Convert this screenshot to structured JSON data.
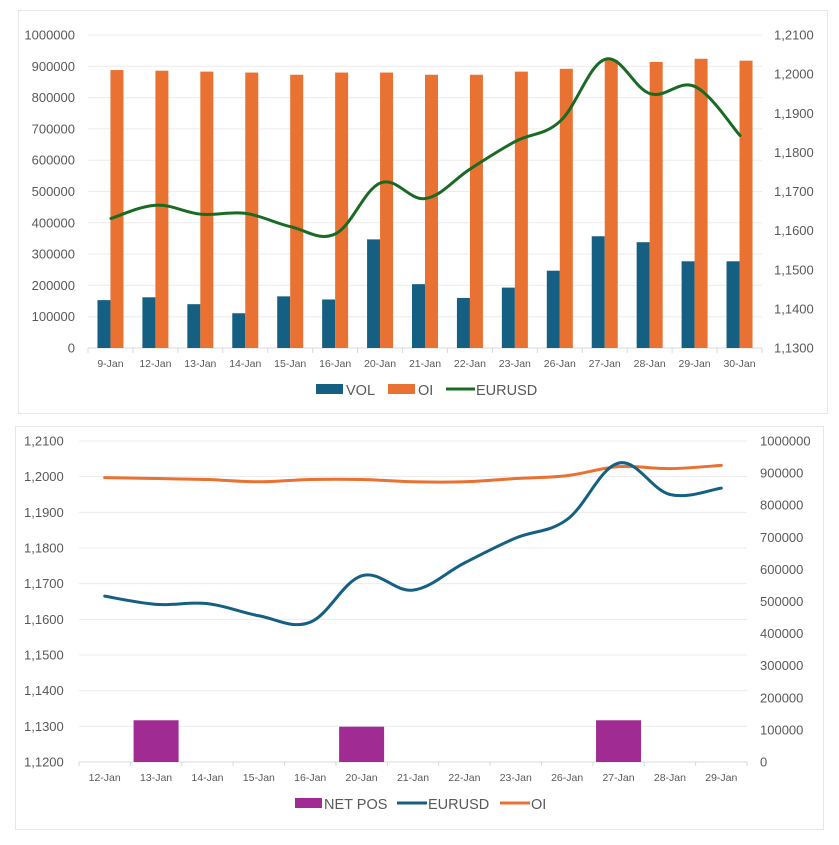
{
  "chart_data": [
    {
      "type": "bar",
      "name": "VOL / OI with EURUSD",
      "title": "",
      "categories": [
        "9-Jan",
        "12-Jan",
        "13-Jan",
        "14-Jan",
        "15-Jan",
        "16-Jan",
        "20-Jan",
        "21-Jan",
        "22-Jan",
        "23-Jan",
        "26-Jan",
        "27-Jan",
        "28-Jan",
        "29-Jan",
        "30-Jan"
      ],
      "series": [
        {
          "name": "VOL",
          "type": "bar",
          "axis": "left",
          "color": "#156082",
          "values": [
            153000,
            162000,
            140000,
            111000,
            165000,
            155000,
            347000,
            204000,
            160000,
            193000,
            247000,
            357000,
            338000,
            277000,
            277000
          ]
        },
        {
          "name": "OI",
          "type": "bar",
          "axis": "left",
          "color": "#E97132",
          "values": [
            888000,
            886000,
            883000,
            880000,
            873000,
            880000,
            880000,
            873000,
            873000,
            883000,
            892000,
            920000,
            914000,
            924000,
            918000
          ]
        },
        {
          "name": "EURUSD",
          "type": "line",
          "axis": "right",
          "color": "#196B24",
          "values": [
            1.1631,
            1.1665,
            1.1642,
            1.1644,
            1.161,
            1.1592,
            1.1722,
            1.1682,
            1.1758,
            1.1828,
            1.188,
            1.2038,
            1.195,
            1.1968,
            1.1843
          ]
        }
      ],
      "left_axis": {
        "min": 0,
        "max": 1000000,
        "ticks": [
          "0",
          "100000",
          "200000",
          "300000",
          "400000",
          "500000",
          "600000",
          "700000",
          "800000",
          "900000",
          "1000000"
        ]
      },
      "right_axis": {
        "min": 1.13,
        "max": 1.21,
        "ticks": [
          "1,1300",
          "1,1400",
          "1,1500",
          "1,1600",
          "1,1700",
          "1,1800",
          "1,1900",
          "1,2000",
          "1,2100"
        ]
      },
      "xlabel": "",
      "ylabel": "",
      "grid": true,
      "legend": {
        "position": "bottom",
        "items": [
          "VOL",
          "OI",
          "EURUSD"
        ]
      }
    },
    {
      "type": "bar",
      "name": "NET POS with EURUSD and OI",
      "title": "",
      "categories": [
        "12-Jan",
        "13-Jan",
        "14-Jan",
        "15-Jan",
        "16-Jan",
        "20-Jan",
        "21-Jan",
        "22-Jan",
        "23-Jan",
        "26-Jan",
        "27-Jan",
        "28-Jan",
        "29-Jan"
      ],
      "series": [
        {
          "name": "NET POS",
          "type": "bar",
          "axis": "right",
          "color": "#A02B93",
          "values": [
            0,
            130000,
            0,
            0,
            0,
            110000,
            0,
            0,
            0,
            0,
            130000,
            0,
            0
          ]
        },
        {
          "name": "EURUSD",
          "type": "line",
          "axis": "left",
          "color": "#156082",
          "values": [
            1.1665,
            1.1642,
            1.1644,
            1.161,
            1.1592,
            1.1722,
            1.1682,
            1.1758,
            1.1828,
            1.188,
            1.2038,
            1.195,
            1.1968
          ]
        },
        {
          "name": "OI",
          "type": "line",
          "axis": "right",
          "color": "#E97132",
          "values": [
            886000,
            883000,
            880000,
            873000,
            880000,
            880000,
            873000,
            873000,
            883000,
            892000,
            920000,
            914000,
            924000
          ]
        }
      ],
      "left_axis": {
        "min": 1.12,
        "max": 1.21,
        "ticks": [
          "1,1200",
          "1,1300",
          "1,1400",
          "1,1500",
          "1,1600",
          "1,1700",
          "1,1800",
          "1,1900",
          "1,2000",
          "1,2100"
        ]
      },
      "right_axis": {
        "min": 0,
        "max": 1000000,
        "ticks": [
          "0",
          "100000",
          "200000",
          "300000",
          "400000",
          "500000",
          "600000",
          "700000",
          "800000",
          "900000",
          "1000000"
        ]
      },
      "xlabel": "",
      "ylabel": "",
      "grid": true,
      "legend": {
        "position": "bottom",
        "items": [
          "NET POS",
          "EURUSD",
          "OI"
        ]
      }
    }
  ]
}
